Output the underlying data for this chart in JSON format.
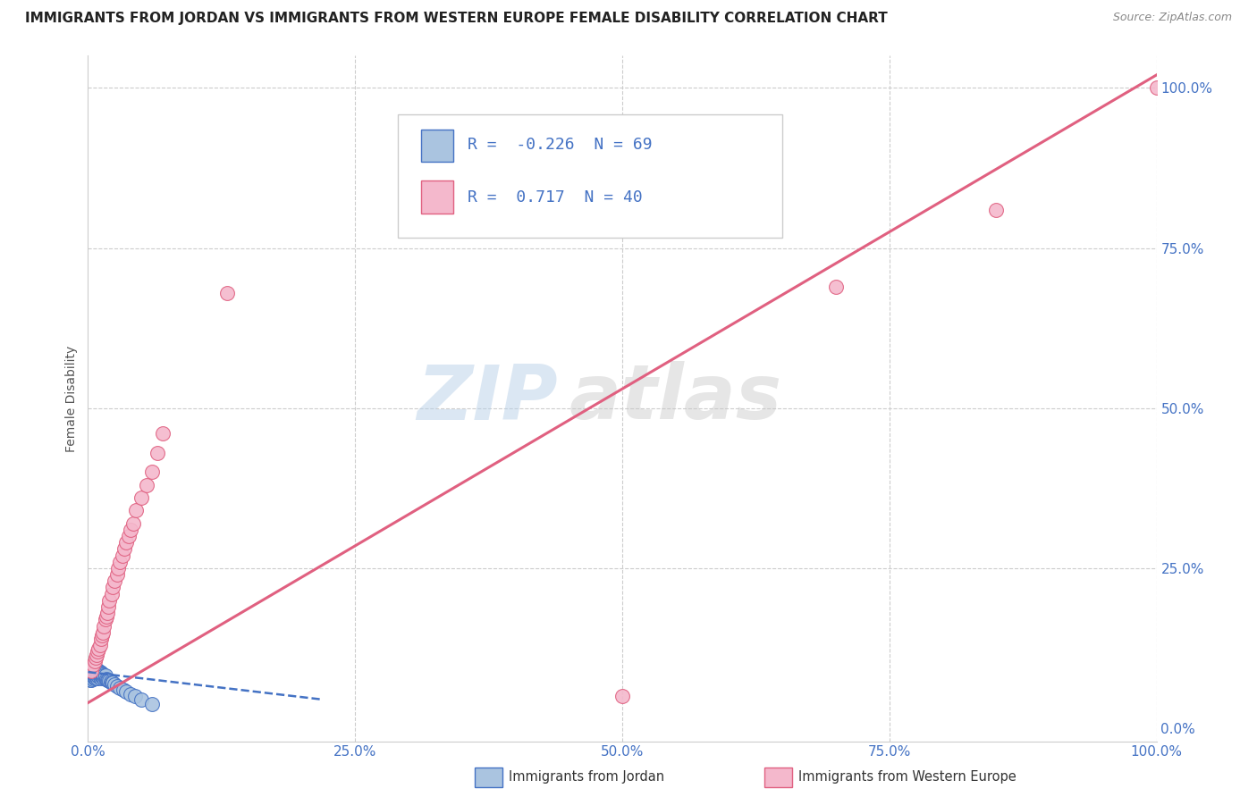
{
  "title": "IMMIGRANTS FROM JORDAN VS IMMIGRANTS FROM WESTERN EUROPE FEMALE DISABILITY CORRELATION CHART",
  "source": "Source: ZipAtlas.com",
  "ylabel": "Female Disability",
  "xlim": [
    0.0,
    1.0
  ],
  "ylim": [
    -0.02,
    1.05
  ],
  "xticks": [
    0.0,
    0.25,
    0.5,
    0.75,
    1.0
  ],
  "yticks": [
    0.0,
    0.25,
    0.5,
    0.75,
    1.0
  ],
  "xtick_labels": [
    "0.0%",
    "25.0%",
    "50.0%",
    "75.0%",
    "100.0%"
  ],
  "ytick_labels": [
    "0.0%",
    "25.0%",
    "50.0%",
    "75.0%",
    "100.0%"
  ],
  "jordan_color": "#aac4e0",
  "jordan_edge_color": "#4472c4",
  "western_europe_color": "#f4b8cc",
  "western_europe_edge_color": "#e06080",
  "jordan_R": -0.226,
  "jordan_N": 69,
  "western_europe_R": 0.717,
  "western_europe_N": 40,
  "trend_jordan_color": "#4472c4",
  "trend_western_color": "#e06080",
  "watermark_zip": "ZIP",
  "watermark_atlas": "atlas",
  "background_color": "#ffffff",
  "grid_color": "#cccccc",
  "legend_jordan_label": "Immigrants from Jordan",
  "legend_western_label": "Immigrants from Western Europe",
  "jordan_x": [
    0.001,
    0.001,
    0.001,
    0.002,
    0.002,
    0.002,
    0.002,
    0.003,
    0.003,
    0.003,
    0.003,
    0.003,
    0.004,
    0.004,
    0.004,
    0.004,
    0.005,
    0.005,
    0.005,
    0.005,
    0.005,
    0.006,
    0.006,
    0.006,
    0.006,
    0.007,
    0.007,
    0.007,
    0.007,
    0.008,
    0.008,
    0.008,
    0.008,
    0.009,
    0.009,
    0.009,
    0.01,
    0.01,
    0.01,
    0.011,
    0.011,
    0.011,
    0.012,
    0.012,
    0.012,
    0.013,
    0.013,
    0.014,
    0.014,
    0.015,
    0.015,
    0.016,
    0.016,
    0.017,
    0.018,
    0.019,
    0.02,
    0.021,
    0.022,
    0.023,
    0.025,
    0.027,
    0.03,
    0.033,
    0.036,
    0.04,
    0.044,
    0.05,
    0.06
  ],
  "jordan_y": [
    0.08,
    0.085,
    0.09,
    0.075,
    0.082,
    0.088,
    0.092,
    0.078,
    0.083,
    0.087,
    0.091,
    0.076,
    0.08,
    0.084,
    0.089,
    0.093,
    0.077,
    0.081,
    0.086,
    0.09,
    0.094,
    0.079,
    0.083,
    0.087,
    0.091,
    0.078,
    0.082,
    0.086,
    0.09,
    0.08,
    0.084,
    0.088,
    0.092,
    0.079,
    0.083,
    0.087,
    0.081,
    0.085,
    0.089,
    0.08,
    0.084,
    0.088,
    0.079,
    0.083,
    0.087,
    0.081,
    0.085,
    0.08,
    0.084,
    0.079,
    0.083,
    0.078,
    0.082,
    0.077,
    0.076,
    0.075,
    0.074,
    0.073,
    0.072,
    0.071,
    0.068,
    0.066,
    0.063,
    0.06,
    0.057,
    0.053,
    0.05,
    0.045,
    0.038
  ],
  "western_x": [
    0.003,
    0.005,
    0.006,
    0.007,
    0.008,
    0.009,
    0.01,
    0.011,
    0.012,
    0.013,
    0.014,
    0.015,
    0.016,
    0.017,
    0.018,
    0.019,
    0.02,
    0.022,
    0.023,
    0.025,
    0.027,
    0.028,
    0.03,
    0.032,
    0.034,
    0.036,
    0.038,
    0.04,
    0.042,
    0.045,
    0.05,
    0.055,
    0.06,
    0.065,
    0.07,
    0.13,
    0.5,
    0.7,
    0.85,
    1.0
  ],
  "western_y": [
    0.09,
    0.1,
    0.105,
    0.11,
    0.115,
    0.12,
    0.125,
    0.13,
    0.14,
    0.145,
    0.15,
    0.16,
    0.17,
    0.175,
    0.18,
    0.19,
    0.2,
    0.21,
    0.22,
    0.23,
    0.24,
    0.25,
    0.26,
    0.27,
    0.28,
    0.29,
    0.3,
    0.31,
    0.32,
    0.34,
    0.36,
    0.38,
    0.4,
    0.43,
    0.46,
    0.68,
    0.05,
    0.69,
    0.81,
    1.0
  ],
  "jordan_trendline_x": [
    0.0,
    0.22
  ],
  "jordan_trendline_y": [
    0.088,
    0.045
  ],
  "western_trendline_x": [
    0.0,
    1.0
  ],
  "western_trendline_y": [
    0.04,
    1.02
  ]
}
